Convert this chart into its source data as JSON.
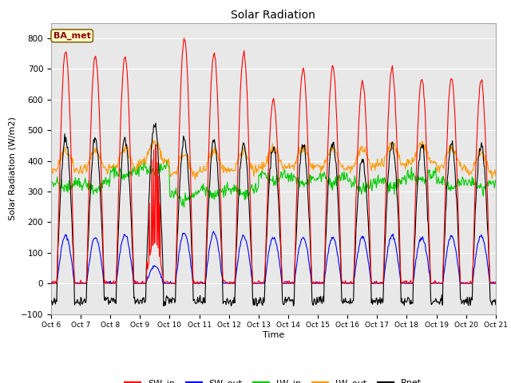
{
  "title": "Solar Radiation",
  "xlabel": "Time",
  "ylabel": "Solar Radiation (W/m2)",
  "ylim": [
    -100,
    850
  ],
  "yticks": [
    -100,
    0,
    100,
    200,
    300,
    400,
    500,
    600,
    700,
    800
  ],
  "xtick_labels": [
    "Oct 6",
    "Oct 7",
    "Oct 8",
    "Oct 9",
    "Oct 10",
    "Oct 11",
    "Oct 12",
    "Oct 13",
    "Oct 14",
    "Oct 15",
    "Oct 16",
    "Oct 17",
    "Oct 18",
    "Oct 19",
    "Oct 20",
    "Oct 21"
  ],
  "colors": {
    "SW_in": "#ff0000",
    "SW_out": "#0000ff",
    "LW_in": "#00cc00",
    "LW_out": "#ff9900",
    "Rnet": "#000000"
  },
  "legend_label": "BA_met",
  "fig_facecolor": "#ffffff",
  "plot_facecolor": "#e8e8e8",
  "grid_color": "#ffffff"
}
